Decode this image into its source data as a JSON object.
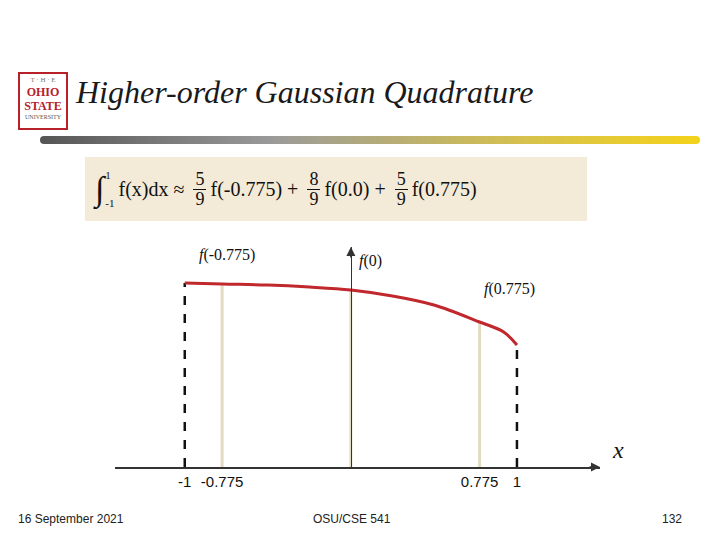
{
  "slide": {
    "title": "Higher-order Gaussian Quadrature",
    "logo": [
      "T · H · E",
      "OHIO",
      "STATE",
      "UNIVERSITY"
    ],
    "footer": {
      "date": "16 September 2021",
      "course": "OSU/CSE 541",
      "page": "132"
    },
    "formula": {
      "integral": "∫",
      "lower": "-1",
      "upper": "1",
      "integrand": "f(x)dx",
      "approx": "≈",
      "plus": "+",
      "terms": [
        {
          "numerator": "5",
          "denominator": "9",
          "text": "f(-0.775)"
        },
        {
          "numerator": "8",
          "denominator": "9",
          "text": "f(0.0)"
        },
        {
          "numerator": "5",
          "denominator": "9",
          "text": "f(0.775)"
        }
      ]
    }
  },
  "chart_data": {
    "type": "line",
    "x": [
      -1,
      -0.775,
      -0.5,
      -0.25,
      0,
      0.25,
      0.5,
      0.775,
      0.92,
      1
    ],
    "values": [
      1.84,
      1.83,
      1.82,
      1.8,
      1.77,
      1.71,
      1.62,
      1.45,
      1.35,
      1.22
    ],
    "color": "#c0282d",
    "x_label": "x",
    "xlim": [
      -1.42,
      1.5
    ],
    "ylim": [
      0,
      2.2
    ],
    "xticks": [
      -1,
      -0.775,
      0.775,
      1
    ],
    "yticks": [],
    "tick_labels": "x",
    "grid": false,
    "nodes": [
      {
        "x": -0.775,
        "label": "f(-0.775)"
      },
      {
        "x": 0,
        "label": "f(0)"
      },
      {
        "x": 0.775,
        "label": "f(0.775)"
      }
    ]
  }
}
